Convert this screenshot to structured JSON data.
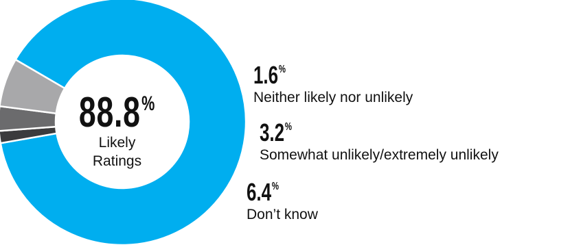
{
  "chart_data": {
    "type": "pie",
    "style": "donut",
    "center": {
      "value": "88.8",
      "unit": "%",
      "label_line1": "Likely",
      "label_line2": "Ratings"
    },
    "slices": [
      {
        "label": "Likely Ratings",
        "value": 88.8,
        "color": "#00aeef"
      },
      {
        "label": "Neither likely nor unlikely",
        "value": 1.6,
        "color": "#3b3b3d"
      },
      {
        "label": "Somewhat unlikely/extremely unlikely",
        "value": 3.2,
        "color": "#6b6b6d"
      },
      {
        "label": "Don’t know",
        "value": 6.4,
        "color": "#a8a8aa"
      }
    ],
    "callouts": [
      {
        "value": "1.6",
        "unit": "%",
        "label": "Neither likely nor unlikely"
      },
      {
        "value": "3.2",
        "unit": "%",
        "label": "Somewhat unlikely/extremely unlikely"
      },
      {
        "value": "6.4",
        "unit": "%",
        "label": "Don’t know"
      }
    ]
  }
}
